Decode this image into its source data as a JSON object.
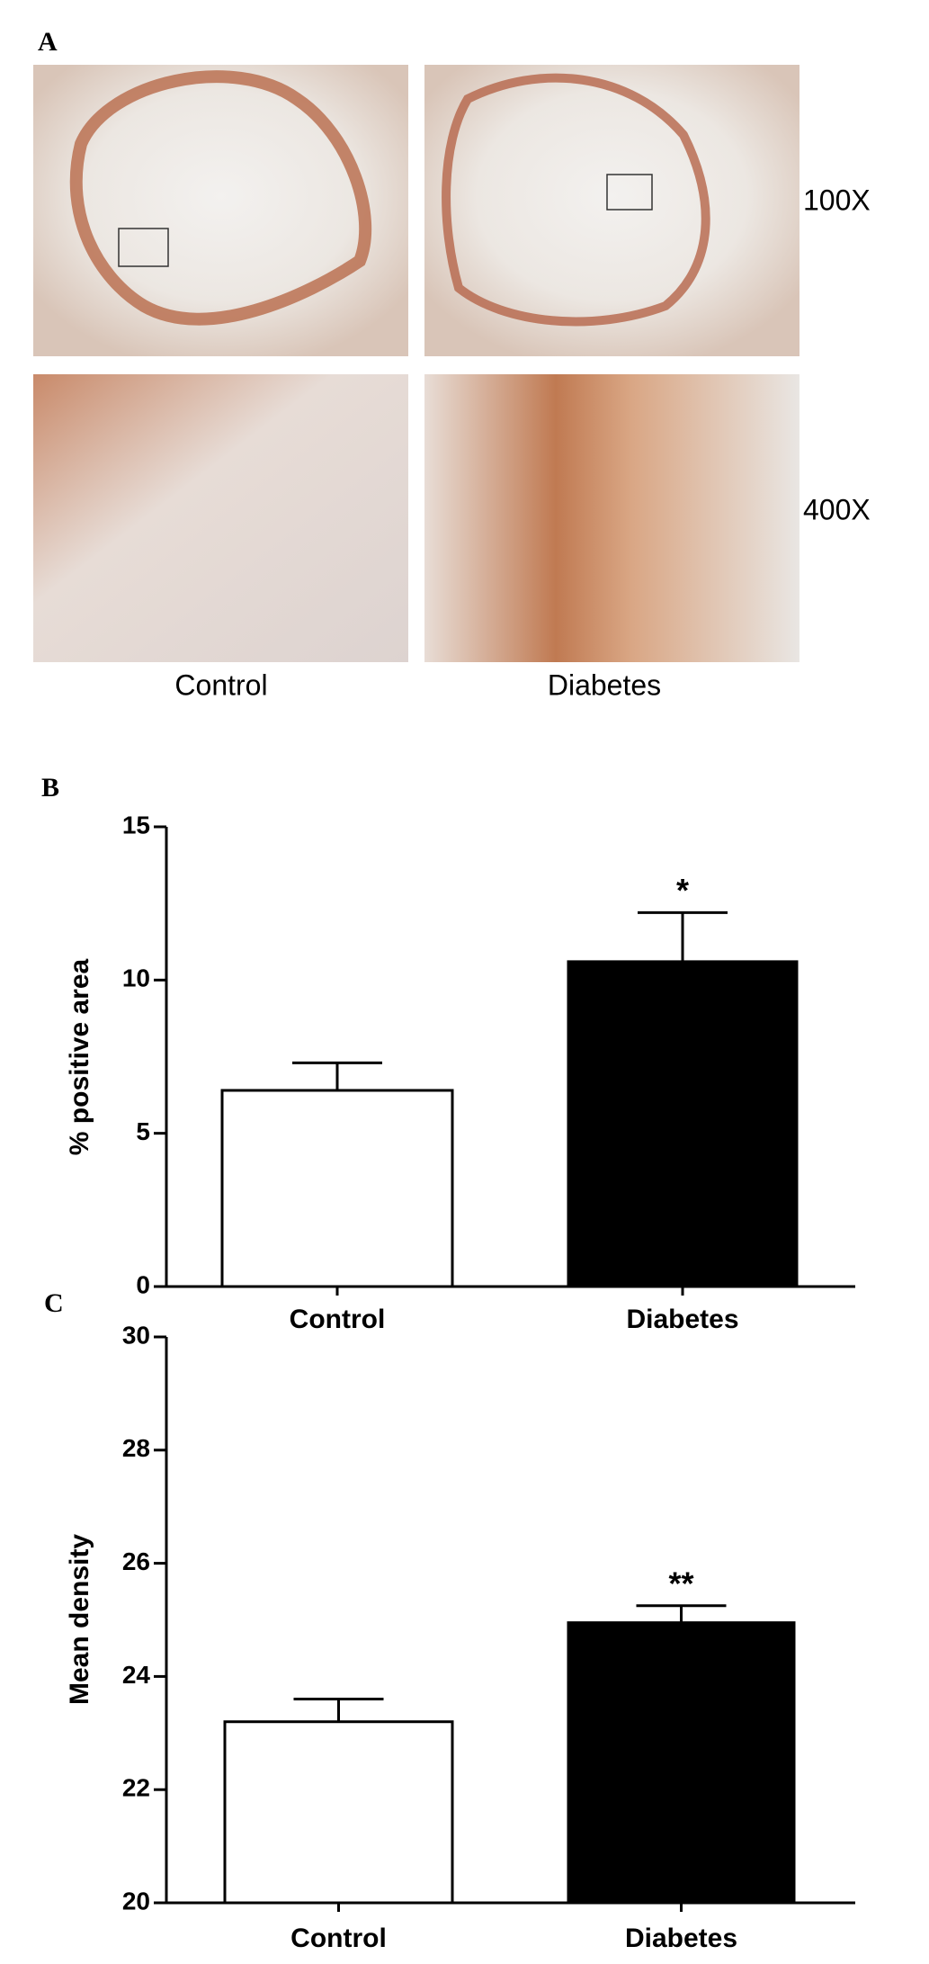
{
  "panel_a": {
    "label": "A",
    "magnifications": [
      "100X",
      "400X"
    ],
    "groups": [
      "Control",
      "Diabetes"
    ]
  },
  "chart_data": [
    {
      "type": "bar",
      "panel_label": "B",
      "ylabel": "% positive area",
      "categories": [
        "Control",
        "Diabetes"
      ],
      "values": [
        6.4,
        10.6
      ],
      "errors": [
        0.9,
        1.6
      ],
      "annotations": [
        null,
        "*"
      ],
      "colors": [
        "#ffffff",
        "#000000"
      ],
      "ylim": [
        0,
        15
      ],
      "yticks": [
        0,
        5,
        10,
        15
      ]
    },
    {
      "type": "bar",
      "panel_label": "C",
      "ylabel": "Mean density",
      "categories": [
        "Control",
        "Diabetes"
      ],
      "values": [
        23.2,
        24.95
      ],
      "errors": [
        0.4,
        0.3
      ],
      "annotations": [
        null,
        "**"
      ],
      "colors": [
        "#ffffff",
        "#000000"
      ],
      "ylim": [
        20,
        30
      ],
      "yticks": [
        20,
        22,
        24,
        26,
        28,
        30
      ]
    }
  ]
}
